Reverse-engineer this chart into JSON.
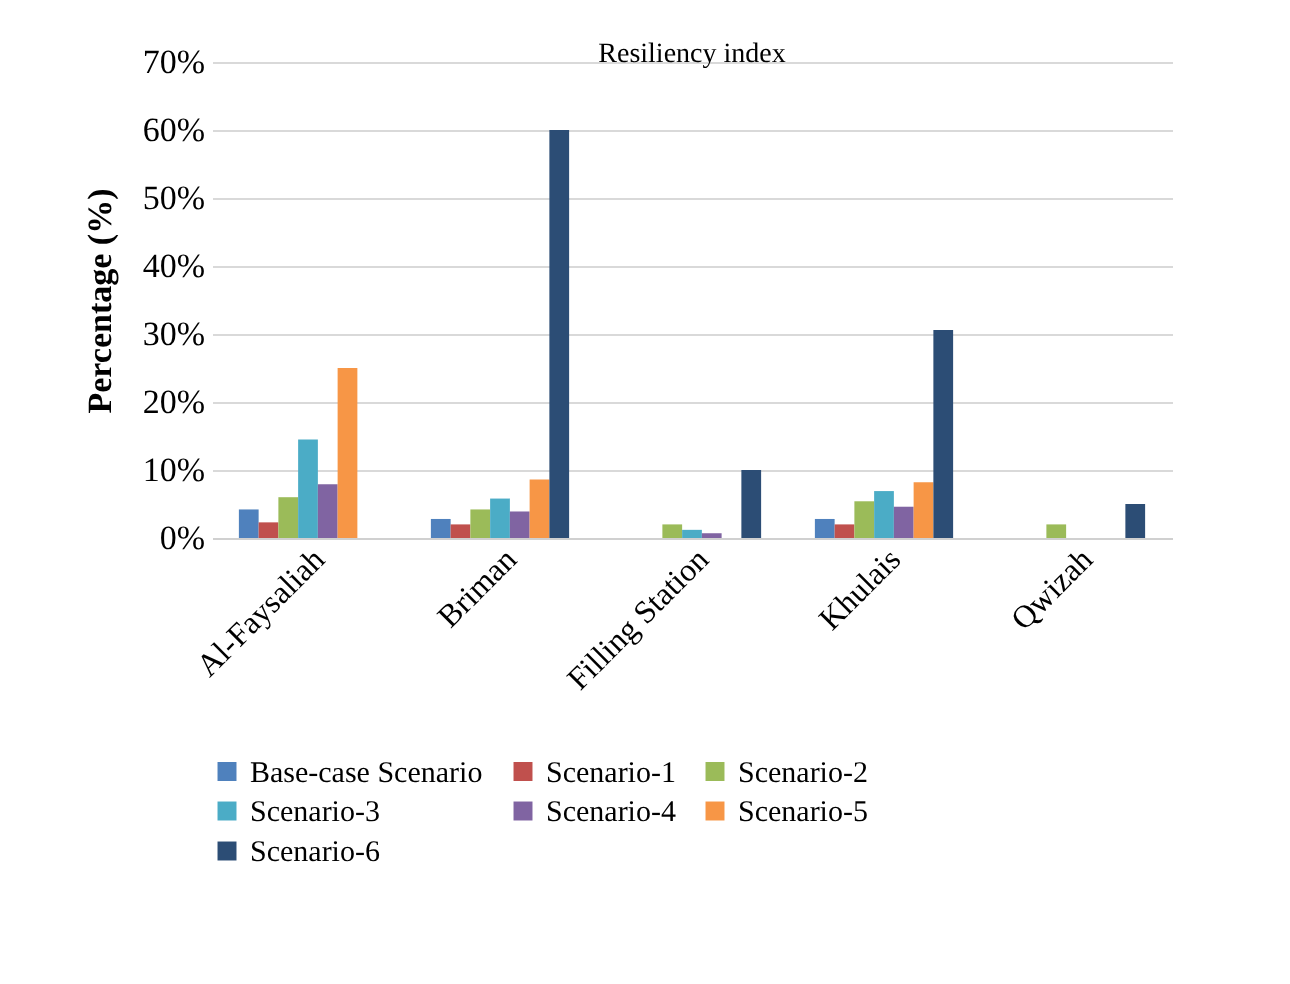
{
  "chart_data": {
    "type": "bar",
    "title": "Resiliency index",
    "ylabel": "Percentage (%)",
    "categories": [
      "Al-Faysaliah",
      "Briman",
      "Filling Station",
      "Khulais",
      "Qwizah"
    ],
    "series": [
      {
        "name": "Base-case Scenario",
        "color": "#4f81bd",
        "values": [
          4.2,
          2.8,
          null,
          2.8,
          null
        ]
      },
      {
        "name": "Scenario-1",
        "color": "#c0504d",
        "values": [
          2.3,
          2.0,
          null,
          2.0,
          null
        ]
      },
      {
        "name": "Scenario-2",
        "color": "#9bbb59",
        "values": [
          6.0,
          4.2,
          2.0,
          5.4,
          2.0
        ]
      },
      {
        "name": "Scenario-3",
        "color": "#4bacc6",
        "values": [
          14.5,
          5.8,
          1.2,
          6.9,
          null
        ]
      },
      {
        "name": "Scenario-4",
        "color": "#8064a2",
        "values": [
          7.9,
          3.9,
          0.7,
          4.6,
          null
        ]
      },
      {
        "name": "Scenario-5",
        "color": "#f79646",
        "values": [
          25,
          8.6,
          null,
          8.2,
          null
        ]
      },
      {
        "name": "Scenario-6",
        "color": "#2c4d75",
        "values": [
          null,
          60,
          10,
          30.6,
          5.0
        ]
      }
    ],
    "ylim": [
      0,
      70
    ],
    "yticks": [
      {
        "value": 0,
        "label": "0%"
      },
      {
        "value": 10,
        "label": "10%"
      },
      {
        "value": 20,
        "label": "20%"
      },
      {
        "value": 30,
        "label": "30%"
      },
      {
        "value": 40,
        "label": "40%"
      },
      {
        "value": 50,
        "label": "50%"
      },
      {
        "value": 60,
        "label": "60%"
      },
      {
        "value": 70,
        "label": "70%"
      }
    ],
    "grid": "y",
    "legend": "bottom"
  }
}
